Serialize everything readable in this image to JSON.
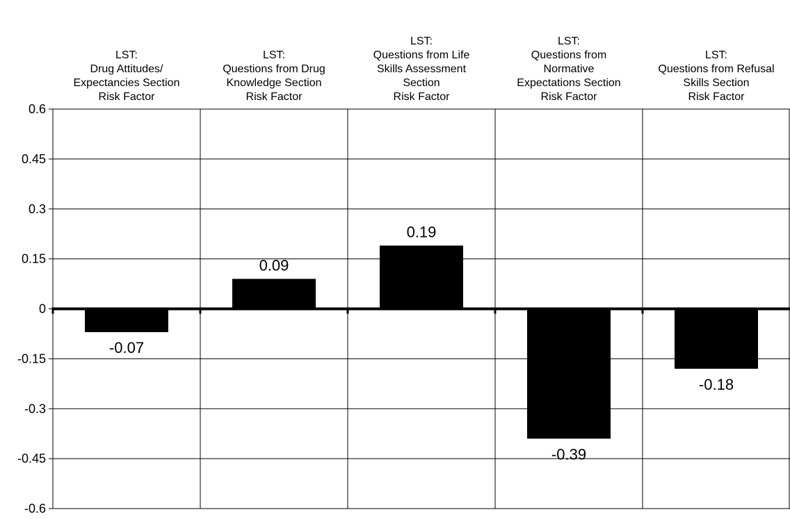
{
  "chart_data": {
    "type": "bar",
    "title": "",
    "xlabel": "",
    "ylabel": "",
    "categories": [
      "LST: Drug Attitudes/ Expectancies Section Risk Factor",
      "LST: Questions from Drug Knowledge Section Risk Factor",
      "LST: Questions from Life Skills Assessment Section Risk Factor",
      "LST: Questions from Normative Expectations Section Risk Factor",
      "LST: Questions from Refusal Skills Section Risk Factor"
    ],
    "category_label_lines": [
      [
        "LST:",
        "Drug Attitudes/",
        "Expectancies Section",
        "Risk Factor"
      ],
      [
        "LST:",
        "Questions from Drug",
        "Knowledge Section",
        "Risk Factor"
      ],
      [
        "LST:",
        "Questions from Life",
        "Skills Assessment",
        "Section",
        "Risk Factor"
      ],
      [
        "LST:",
        "Questions from",
        "Normative",
        "Expectations Section",
        "Risk Factor"
      ],
      [
        "LST:",
        "Questions from Refusal",
        "Skills Section",
        "Risk Factor"
      ]
    ],
    "values": [
      -0.07,
      0.09,
      0.19,
      -0.39,
      -0.18
    ],
    "data_labels": [
      "-0.07",
      "0.09",
      "0.19",
      "-0.39",
      "-0.18"
    ],
    "ylim": [
      -0.6,
      0.6
    ],
    "yticks": [
      0.6,
      0.45,
      0.3,
      0.15,
      0,
      -0.15,
      -0.3,
      -0.45,
      -0.6
    ],
    "ytick_labels": [
      "0.6",
      "0.45",
      "0.3",
      "0.15",
      "0",
      "-0.15",
      "-0.3",
      "-0.45",
      "-0.6"
    ],
    "category_labels_position": "top",
    "grid": true,
    "legend": "none",
    "bar_color": "#000000",
    "grid_color": "#000000"
  }
}
